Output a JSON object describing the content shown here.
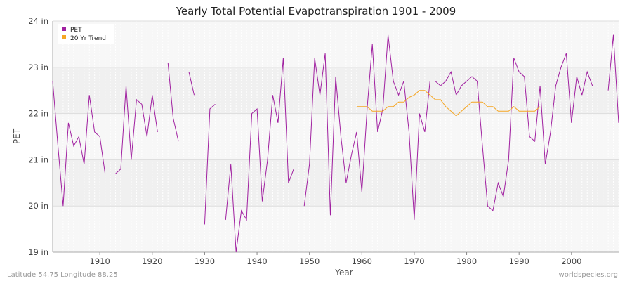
{
  "chart_data": {
    "type": "line",
    "title": "Yearly Total Potential Evapotranspiration 1901 - 2009",
    "xlabel": "Year",
    "ylabel": "PET",
    "xlim": [
      1901,
      2009
    ],
    "ylim": [
      19,
      24
    ],
    "x_ticks": [
      1910,
      1920,
      1930,
      1940,
      1950,
      1960,
      1970,
      1980,
      1990,
      2000
    ],
    "y_ticks": [
      {
        "value": 19,
        "label": "19 in"
      },
      {
        "value": 20,
        "label": "20 in"
      },
      {
        "value": 21,
        "label": "21 in"
      },
      {
        "value": 22,
        "label": "22 in"
      },
      {
        "value": 23,
        "label": "23 in"
      },
      {
        "value": 24,
        "label": "24 in"
      }
    ],
    "legend_position": "top-left",
    "series": [
      {
        "name": "PET",
        "color": "#a020a0",
        "x": [
          1901,
          1902,
          1903,
          1904,
          1905,
          1906,
          1907,
          1908,
          1909,
          1910,
          1911,
          1912,
          1913,
          1914,
          1915,
          1916,
          1917,
          1918,
          1919,
          1920,
          1921,
          1922,
          1923,
          1924,
          1925,
          1926,
          1927,
          1928,
          1929,
          1930,
          1931,
          1932,
          1933,
          1934,
          1935,
          1936,
          1937,
          1938,
          1939,
          1940,
          1941,
          1942,
          1943,
          1944,
          1945,
          1946,
          1947,
          1948,
          1949,
          1950,
          1951,
          1952,
          1953,
          1954,
          1955,
          1956,
          1957,
          1958,
          1959,
          1960,
          1961,
          1962,
          1963,
          1964,
          1965,
          1966,
          1967,
          1968,
          1969,
          1970,
          1971,
          1972,
          1973,
          1974,
          1975,
          1976,
          1977,
          1978,
          1979,
          1980,
          1981,
          1982,
          1983,
          1984,
          1985,
          1986,
          1987,
          1988,
          1989,
          1990,
          1991,
          1992,
          1993,
          1994,
          1995,
          1996,
          1997,
          1998,
          1999,
          2000,
          2001,
          2002,
          2003,
          2004,
          2005,
          2006,
          2007,
          2008,
          2009
        ],
        "values": [
          22.7,
          21.3,
          20.0,
          21.8,
          21.3,
          21.5,
          20.9,
          22.4,
          21.6,
          21.5,
          20.7,
          null,
          20.7,
          20.8,
          22.6,
          21.0,
          22.3,
          22.2,
          21.5,
          22.4,
          21.6,
          null,
          23.1,
          21.9,
          21.4,
          null,
          22.9,
          22.4,
          null,
          19.6,
          22.1,
          22.2,
          null,
          19.7,
          20.9,
          19.0,
          19.9,
          19.7,
          22.0,
          22.1,
          20.1,
          21.0,
          22.4,
          21.8,
          23.2,
          20.5,
          20.8,
          null,
          20.0,
          20.9,
          23.2,
          22.4,
          23.3,
          19.8,
          22.8,
          21.5,
          20.5,
          21.1,
          21.6,
          20.3,
          22.1,
          23.5,
          21.6,
          22.1,
          23.7,
          22.7,
          22.4,
          22.7,
          21.6,
          19.7,
          22.0,
          21.6,
          22.7,
          22.7,
          22.6,
          22.7,
          22.9,
          22.4,
          22.6,
          22.7,
          22.8,
          22.7,
          21.3,
          20.0,
          19.9,
          20.5,
          20.2,
          21.0,
          23.2,
          22.9,
          22.8,
          21.5,
          21.4,
          22.6,
          20.9,
          21.6,
          22.6,
          23.0,
          23.3,
          21.8,
          22.8,
          22.4,
          22.9,
          22.6,
          null,
          null,
          22.5,
          23.7,
          21.8
        ]
      },
      {
        "name": "20 Yr Trend",
        "color": "#f5a623",
        "x": [
          1959,
          1960,
          1961,
          1962,
          1963,
          1964,
          1965,
          1966,
          1967,
          1968,
          1969,
          1970,
          1971,
          1972,
          1973,
          1974,
          1975,
          1976,
          1977,
          1978,
          1979,
          1980,
          1981,
          1982,
          1983,
          1984,
          1985,
          1986,
          1987,
          1988,
          1989,
          1990,
          1991,
          1992,
          1993,
          1994
        ],
        "values": [
          22.15,
          22.15,
          22.15,
          22.05,
          22.05,
          22.05,
          22.15,
          22.15,
          22.25,
          22.25,
          22.35,
          22.4,
          22.5,
          22.5,
          22.4,
          22.3,
          22.3,
          22.15,
          22.05,
          21.95,
          22.05,
          22.15,
          22.25,
          22.25,
          22.25,
          22.15,
          22.15,
          22.05,
          22.05,
          22.05,
          22.15,
          22.05,
          22.05,
          22.05,
          22.05,
          22.15
        ]
      }
    ]
  },
  "footer": {
    "left": "Latitude 54.75 Longitude 88.25",
    "right": "worldspecies.org"
  }
}
